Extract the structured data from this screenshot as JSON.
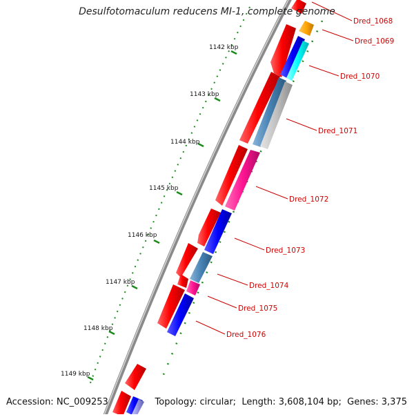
{
  "title": "Desulfotomaculum reducens MI-1, complete genome",
  "footer": {
    "accession_label": "Accession:",
    "accession": "NC_009253",
    "topology_label": "Topology:",
    "topology": "circular",
    "length_label": "Length:",
    "length": "3,608,104 bp",
    "genes_label": "Genes:",
    "genes": "3,375"
  },
  "map": {
    "scale_unit": "kbp",
    "scale_labels": [
      "1142 kbp",
      "1143 kbp",
      "1144 kbp",
      "1145 kbp",
      "1146 kbp",
      "1147 kbp",
      "1148 kbp",
      "1149 kbp"
    ],
    "gene_labels": [
      "Dred_1068",
      "Dred_1069",
      "Dred_1070",
      "Dred_1071",
      "Dred_1072",
      "Dred_1073",
      "Dred_1074",
      "Dred_1075",
      "Dred_1076"
    ],
    "colors": {
      "forward_strand": "#ff0000",
      "label_text": "#cc0000",
      "backbone": "#8a8a8a",
      "tick": "#1a8a1a",
      "categories": [
        "#ffa500",
        "#0000ff",
        "#00ffff",
        "#4682b4",
        "#c0c0c0",
        "#ff1493"
      ]
    }
  }
}
